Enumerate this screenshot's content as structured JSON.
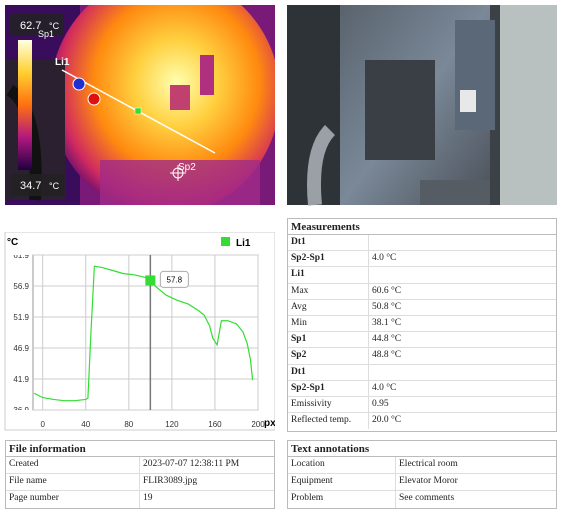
{
  "thermal_image": {
    "scale_max": "62.7",
    "scale_min": "34.7",
    "unit": "°C",
    "labels": [
      "Sp1",
      "Li1",
      "Sp2"
    ]
  },
  "chart_data": {
    "type": "line",
    "y_label": "°C",
    "x_label": "px",
    "x": [
      -8,
      0,
      10,
      20,
      30,
      40,
      42,
      45,
      48,
      55,
      65,
      75,
      85,
      95,
      100,
      105,
      115,
      125,
      135,
      145,
      150,
      155,
      158,
      162,
      166,
      172,
      180,
      186,
      190,
      193,
      195
    ],
    "series": [
      {
        "name": "Li1",
        "color": "#33dd33",
        "values": [
          39.6,
          38.9,
          38.6,
          38.4,
          38.4,
          38.6,
          38.8,
          50,
          60.1,
          59.9,
          59.4,
          58.9,
          58.7,
          58.3,
          57.8,
          56.8,
          55.4,
          54.6,
          54.0,
          52.9,
          52.2,
          50.5,
          48.5,
          47.4,
          51.3,
          51.3,
          50.8,
          49.5,
          47.6,
          45.0,
          41.7
        ]
      }
    ],
    "cursor": {
      "x": 100,
      "value": 57.8
    },
    "xlim": [
      -9,
      200
    ],
    "xticks": [
      0,
      40,
      80,
      120,
      160,
      200
    ],
    "ylim": [
      36.9,
      61.9
    ],
    "yticks": [
      36.9,
      41.9,
      46.9,
      51.9,
      56.9,
      61.9
    ],
    "grid": true
  },
  "measurements": {
    "title": "Measurements",
    "rows": [
      {
        "label": "Dt1",
        "bold": true
      },
      {
        "label": "Sp2-Sp1",
        "value": "4.0 °C",
        "bold": true
      },
      {
        "label": "Li1",
        "bold": true
      },
      {
        "label": "Max",
        "value": "60.6 °C"
      },
      {
        "label": "Avg",
        "value": "50.8 °C"
      },
      {
        "label": "Min",
        "value": "38.1 °C"
      },
      {
        "label": "Sp1",
        "value": "44.8 °C",
        "bold": true
      },
      {
        "label": "Sp2",
        "value": "48.8 °C",
        "bold": true
      },
      {
        "label": "Dt1",
        "bold": true
      },
      {
        "label": "Sp2-Sp1",
        "value": "4.0 °C",
        "bold": true
      },
      {
        "label": "Emissivity",
        "value": "0.95"
      },
      {
        "label": "Reflected temp.",
        "value": "20.0 °C"
      }
    ]
  },
  "file_information": {
    "title": "File information",
    "rows": [
      [
        "Created",
        "2023-07-07 12:38:11 PM"
      ],
      [
        "File name",
        "FLIR3089.jpg"
      ],
      [
        "Page number",
        "19"
      ]
    ]
  },
  "text_annotations": {
    "title": "Text annotations",
    "rows": [
      [
        "Location",
        "Electrical room"
      ],
      [
        "Equipment",
        "Elevator Moror"
      ],
      [
        "Problem",
        "See comments"
      ]
    ]
  }
}
